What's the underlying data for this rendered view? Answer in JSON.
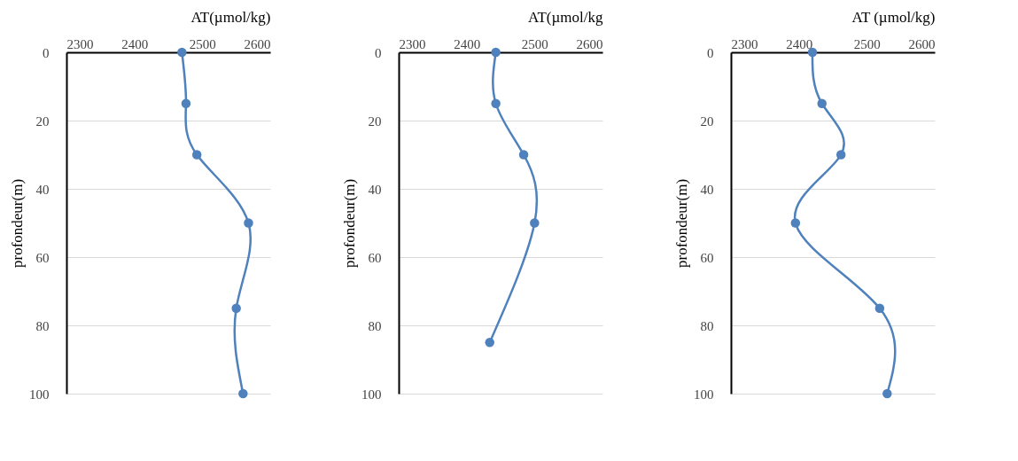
{
  "chart_data": [
    {
      "type": "line",
      "xlabel": "AT(µmol/kg)",
      "ylabel": "profondeur(m)",
      "xlim": [
        2300,
        2600
      ],
      "xticks": [
        2300,
        2400,
        2500,
        2600
      ],
      "ylim": [
        100,
        0
      ],
      "yticks": [
        0,
        20,
        40,
        60,
        80,
        100
      ],
      "grid": "y",
      "marker": "circle",
      "line_style": "solid",
      "series": [
        {
          "color": "#4f81bd",
          "x": [
            2470,
            2476,
            2492,
            2568,
            2550,
            2560
          ],
          "values": [
            0,
            15,
            30,
            50,
            75,
            100
          ]
        }
      ]
    },
    {
      "type": "line",
      "xlabel": "AT(µmol/kg",
      "ylabel": "profondeur(m)",
      "xlim": [
        2300,
        2600
      ],
      "xticks": [
        2300,
        2400,
        2500,
        2600
      ],
      "ylim": [
        100,
        0
      ],
      "yticks": [
        0,
        20,
        40,
        60,
        80,
        100
      ],
      "grid": "y",
      "marker": "circle",
      "line_style": "solid",
      "series": [
        {
          "color": "#4f81bd",
          "x": [
            2443,
            2443,
            2484,
            2500,
            2434
          ],
          "values": [
            0,
            15,
            30,
            50,
            85
          ]
        }
      ]
    },
    {
      "type": "line",
      "xlabel": "AT (µmol/kg)",
      "ylabel": "profondeur(m)",
      "xlim": [
        2300,
        2600
      ],
      "xticks": [
        2300,
        2400,
        2500,
        2600
      ],
      "ylim": [
        100,
        0
      ],
      "yticks": [
        0,
        20,
        40,
        60,
        80,
        100
      ],
      "grid": "y",
      "marker": "circle",
      "line_style": "solid",
      "series": [
        {
          "color": "#4f81bd",
          "x": [
            2420,
            2434,
            2462,
            2395,
            2519,
            2530
          ],
          "values": [
            0,
            15,
            30,
            50,
            75,
            100
          ]
        }
      ]
    }
  ]
}
